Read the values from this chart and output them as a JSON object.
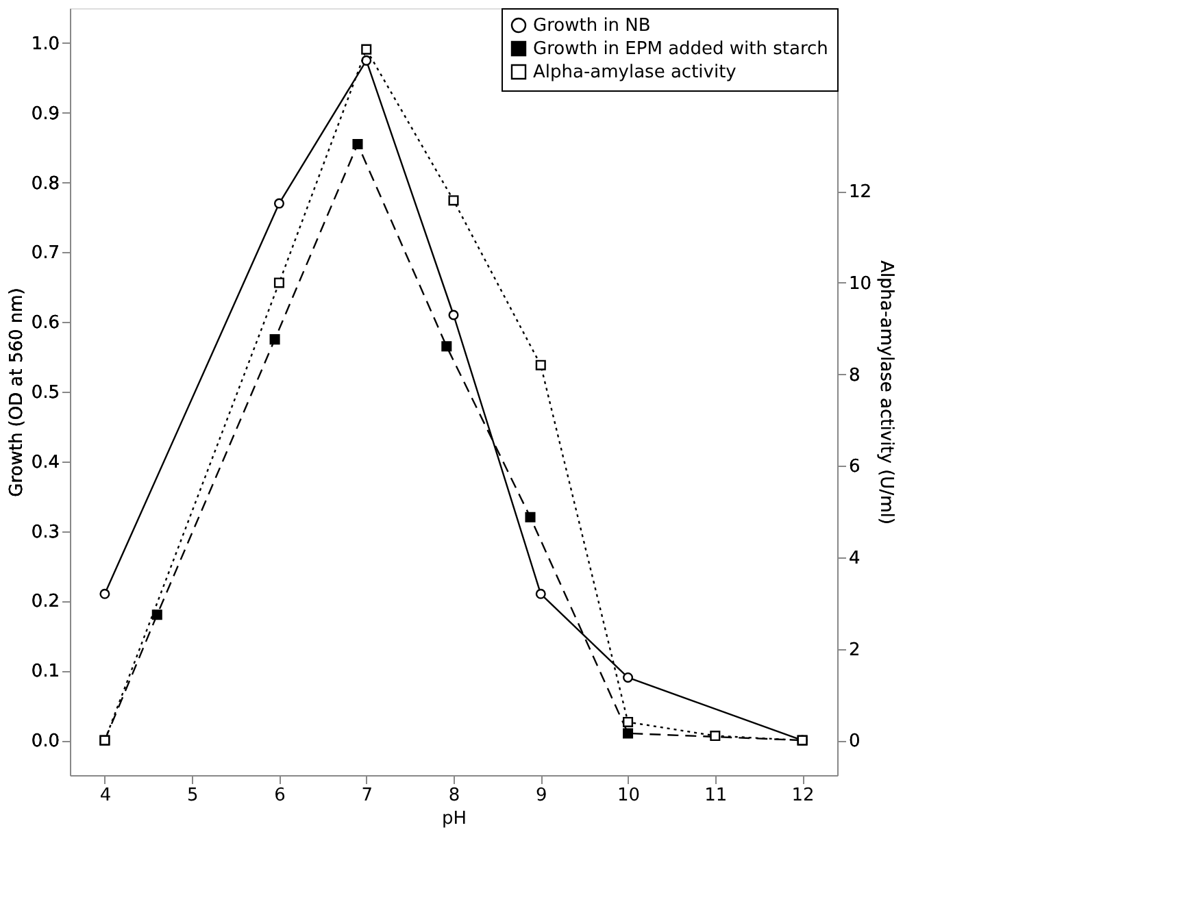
{
  "chart_data": {
    "type": "line",
    "xlabel": "pH",
    "ylabel": "Growth (OD at 560 nm)",
    "y2label": "Alpha-amylase activity (U/ml)",
    "xlim": [
      3.6,
      12.4
    ],
    "xticks": [
      4,
      5,
      6,
      7,
      8,
      9,
      10,
      11,
      12
    ],
    "ylim": [
      -0.05,
      1.05
    ],
    "yticks": [
      {
        "value": 0,
        "label": "0.0"
      },
      0.1,
      0.2,
      0.3,
      0.4,
      0.5,
      0.6,
      0.7,
      0.8,
      0.9,
      {
        "value": 1,
        "label": "1.0"
      }
    ],
    "y2lim": [
      -0.76,
      16.0
    ],
    "y2ticks": [
      0,
      2,
      4,
      6,
      8,
      10,
      12
    ],
    "grid": false,
    "legend": "top right",
    "series": [
      {
        "name": "Growth in NB",
        "color": "#000000",
        "marker": "circle",
        "line_style": "solid",
        "x": [
          4,
          6,
          7,
          8,
          9,
          10,
          12
        ],
        "values": [
          0.21,
          0.77,
          0.975,
          0.61,
          0.21,
          0.09,
          0.0
        ]
      },
      {
        "name": "Growth in EPM added with starch",
        "color": "#000000",
        "marker": "square",
        "line_style": "dashed",
        "x": [
          4,
          4.6,
          5.95,
          6.9,
          7.92,
          8.88,
          10,
          12
        ],
        "values": [
          0.0,
          0.18,
          0.575,
          0.855,
          0.565,
          0.32,
          0.01,
          0.0
        ]
      },
      {
        "name": "Alpha-amylase activity",
        "color": "#000000",
        "marker": "square",
        "line_style": "dotted",
        "axis": "y2",
        "x": [
          4,
          6,
          7,
          8,
          9,
          10,
          11,
          12
        ],
        "values": [
          0.0,
          10.0,
          15.1,
          11.8,
          8.2,
          0.4,
          0.1,
          0.0
        ]
      }
    ]
  }
}
